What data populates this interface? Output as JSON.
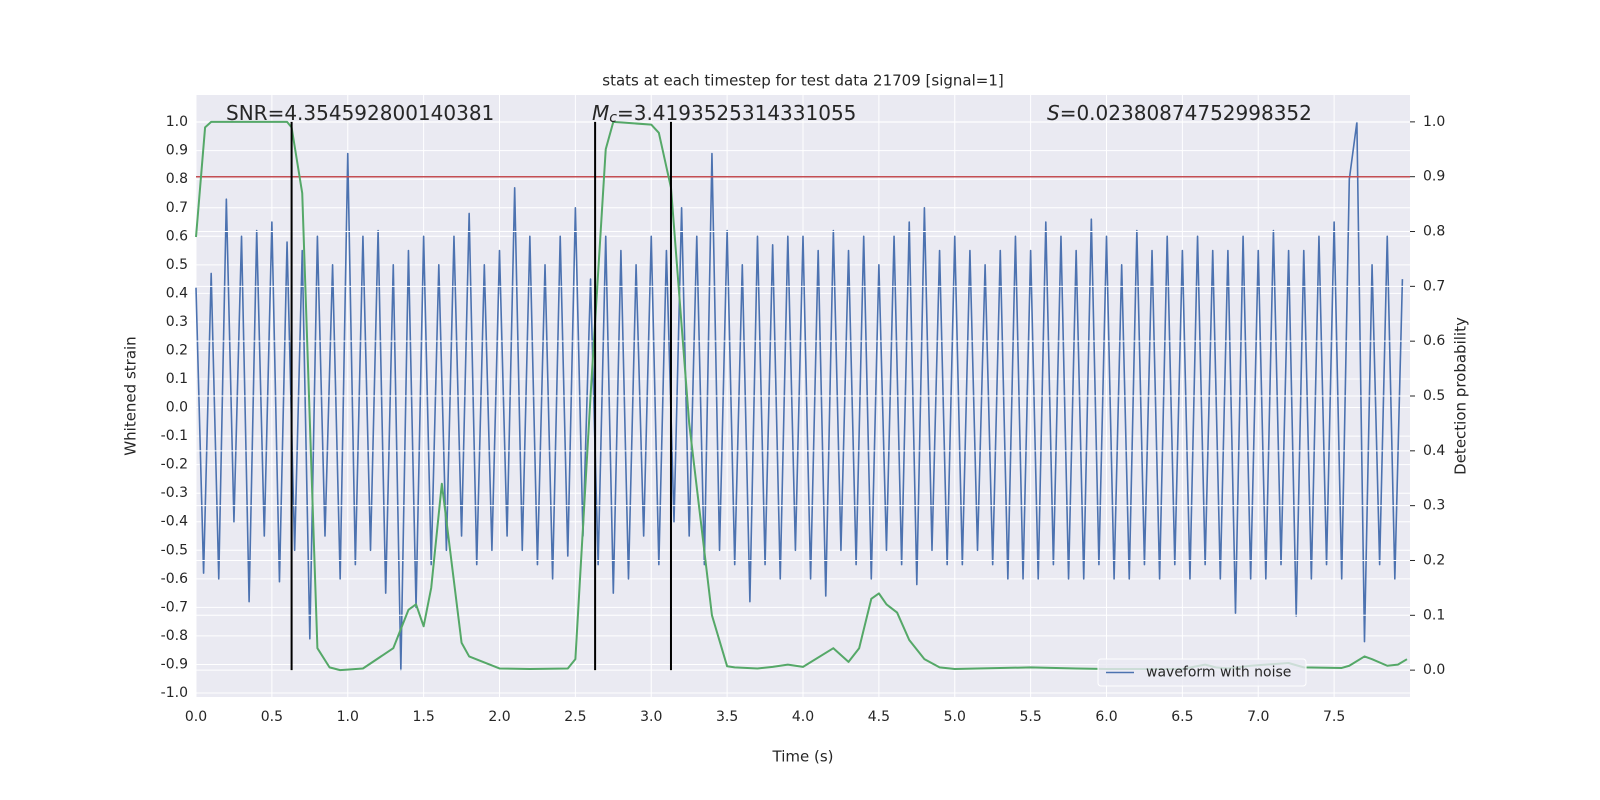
{
  "chart_data": {
    "type": "line",
    "title": "stats at each timestep for test data 21709 [signal=1]",
    "xlabel": "Time (s)",
    "ylabel": "Whitened strain",
    "y2label": "Detection probability",
    "xlim": [
      0,
      8.0
    ],
    "ylim": [
      -1.014,
      1.095
    ],
    "y2lim": [
      -0.049,
      1.049
    ],
    "xticks": [
      {
        "value": 0,
        "label": "0.0"
      },
      0.5,
      {
        "value": 1,
        "label": "1.0"
      },
      1.5,
      {
        "value": 2,
        "label": "2.0"
      },
      2.5,
      {
        "value": 3,
        "label": "3.0"
      },
      3.5,
      {
        "value": 4,
        "label": "4.0"
      },
      4.5,
      {
        "value": 5,
        "label": "5.0"
      },
      5.5,
      {
        "value": 6,
        "label": "6.0"
      },
      6.5,
      {
        "value": 7,
        "label": "7.0"
      },
      7.5
    ],
    "yticks": [
      {
        "value": -1,
        "label": "-1.0"
      },
      -0.9,
      -0.8,
      -0.7,
      -0.6,
      -0.5,
      -0.4,
      -0.3,
      -0.2,
      -0.1,
      {
        "value": 0,
        "label": "0.0"
      },
      0.1,
      0.2,
      0.3,
      0.4,
      0.5,
      0.6,
      0.7,
      0.8,
      0.9,
      {
        "value": 1,
        "label": "1.0"
      }
    ],
    "y2ticks": [
      {
        "value": 0,
        "label": "0.0"
      },
      0.1,
      0.2,
      0.3,
      0.4,
      0.5,
      0.6,
      0.7,
      0.8,
      0.9,
      {
        "value": 1,
        "label": "1.0"
      }
    ],
    "grid": true,
    "y2grid": true,
    "legend": "lower right",
    "series": [
      {
        "name": "waveform with noise",
        "color": "#4c72b0",
        "x": [
          0,
          0.05,
          0.1,
          0.15,
          0.2,
          0.25,
          0.3,
          0.35,
          0.4,
          0.45,
          0.5,
          0.55,
          0.6,
          0.65,
          0.7,
          0.75,
          0.8,
          0.85,
          0.9,
          0.95,
          1.0,
          1.05,
          1.1,
          1.15,
          1.2,
          1.25,
          1.3,
          1.35,
          1.4,
          1.45,
          1.5,
          1.55,
          1.6,
          1.65,
          1.7,
          1.75,
          1.8,
          1.85,
          1.9,
          1.95,
          2.0,
          2.05,
          2.1,
          2.15,
          2.2,
          2.25,
          2.3,
          2.35,
          2.4,
          2.45,
          2.5,
          2.55,
          2.6,
          2.65,
          2.7,
          2.75,
          2.8,
          2.85,
          2.9,
          2.95,
          3.0,
          3.05,
          3.1,
          3.15,
          3.2,
          3.25,
          3.3,
          3.35,
          3.4,
          3.45,
          3.5,
          3.55,
          3.6,
          3.65,
          3.7,
          3.75,
          3.8,
          3.85,
          3.9,
          3.95,
          4.0,
          4.05,
          4.1,
          4.15,
          4.2,
          4.25,
          4.3,
          4.35,
          4.4,
          4.45,
          4.5,
          4.55,
          4.6,
          4.65,
          4.7,
          4.75,
          4.8,
          4.85,
          4.9,
          4.95,
          5.0,
          5.05,
          5.1,
          5.15,
          5.2,
          5.25,
          5.3,
          5.35,
          5.4,
          5.45,
          5.5,
          5.55,
          5.6,
          5.65,
          5.7,
          5.75,
          5.8,
          5.85,
          5.9,
          5.95,
          6.0,
          6.05,
          6.1,
          6.15,
          6.2,
          6.25,
          6.3,
          6.35,
          6.4,
          6.45,
          6.5,
          6.55,
          6.6,
          6.65,
          6.7,
          6.75,
          6.8,
          6.85,
          6.9,
          6.95,
          7.0,
          7.05,
          7.1,
          7.15,
          7.2,
          7.25,
          7.3,
          7.35,
          7.4,
          7.45,
          7.5,
          7.55,
          7.6,
          7.65,
          7.7,
          7.75,
          7.8,
          7.85,
          7.9,
          7.95
        ],
        "values": [
          0.42,
          -0.58,
          0.47,
          -0.6,
          0.73,
          -0.4,
          0.6,
          -0.68,
          0.62,
          -0.45,
          0.65,
          -0.61,
          0.58,
          -0.5,
          0.55,
          -0.81,
          0.6,
          -0.45,
          0.5,
          -0.6,
          0.89,
          -0.55,
          0.6,
          -0.5,
          0.62,
          -0.65,
          0.5,
          -0.92,
          0.55,
          -0.7,
          0.6,
          -0.55,
          0.5,
          -0.5,
          0.6,
          -0.45,
          0.68,
          -0.55,
          0.5,
          -0.5,
          0.55,
          -0.45,
          0.77,
          -0.5,
          0.6,
          -0.55,
          0.5,
          -0.6,
          0.6,
          -0.52,
          0.7,
          -0.45,
          0.45,
          -0.55,
          0.6,
          -0.65,
          0.55,
          -0.6,
          0.5,
          -0.45,
          0.6,
          -0.55,
          0.55,
          -0.4,
          0.7,
          -0.45,
          0.6,
          -0.55,
          0.89,
          -0.5,
          0.62,
          -0.55,
          0.5,
          -0.68,
          0.6,
          -0.55,
          0.57,
          -0.6,
          0.6,
          -0.5,
          0.6,
          -0.6,
          0.55,
          -0.66,
          0.62,
          -0.5,
          0.55,
          -0.55,
          0.6,
          -0.6,
          0.5,
          -0.5,
          0.6,
          -0.55,
          0.65,
          -0.62,
          0.7,
          -0.5,
          0.55,
          -0.55,
          0.6,
          -0.55,
          0.55,
          -0.5,
          0.5,
          -0.55,
          0.55,
          -0.6,
          0.6,
          -0.6,
          0.55,
          -0.6,
          0.65,
          -0.55,
          0.6,
          -0.6,
          0.55,
          -0.6,
          0.66,
          -0.55,
          0.6,
          -0.6,
          0.5,
          -0.6,
          0.62,
          -0.55,
          0.55,
          -0.6,
          0.6,
          -0.55,
          0.55,
          -0.6,
          0.6,
          -0.55,
          0.55,
          -0.6,
          0.55,
          -0.72,
          0.6,
          -0.6,
          0.55,
          -0.6,
          0.62,
          -0.55,
          0.55,
          -0.73,
          0.55,
          -0.6,
          0.6,
          -0.55,
          0.65,
          -0.6,
          0.8,
          1.0,
          -0.82,
          0.5,
          -0.55,
          0.6,
          -0.6,
          0.45
        ]
      },
      {
        "axis": "y2",
        "color": "#55a868",
        "x": [
          0,
          0.06,
          0.1,
          0.2,
          0.4,
          0.6,
          0.63,
          0.7,
          0.8,
          0.88,
          0.95,
          1.1,
          1.3,
          1.4,
          1.45,
          1.5,
          1.55,
          1.62,
          1.75,
          1.8,
          2.0,
          2.2,
          2.45,
          2.5,
          2.6,
          2.7,
          2.75,
          3.0,
          3.05,
          3.13,
          3.25,
          3.4,
          3.5,
          3.55,
          3.7,
          3.8,
          3.9,
          4.0,
          4.2,
          4.3,
          4.37,
          4.45,
          4.5,
          4.55,
          4.62,
          4.7,
          4.8,
          4.9,
          5.0,
          5.5,
          5.8,
          6.0,
          6.5,
          6.65,
          6.72,
          6.8,
          6.95,
          7.2,
          7.3,
          7.55,
          7.6,
          7.7,
          7.75,
          7.85,
          7.92,
          7.98
        ],
        "values": [
          0.79,
          0.99,
          1.0,
          1.0,
          1.0,
          1.0,
          0.99,
          0.87,
          0.04,
          0.005,
          0.0,
          0.003,
          0.04,
          0.11,
          0.12,
          0.08,
          0.15,
          0.34,
          0.05,
          0.025,
          0.003,
          0.002,
          0.003,
          0.02,
          0.5,
          0.95,
          1.0,
          0.995,
          0.98,
          0.88,
          0.45,
          0.1,
          0.007,
          0.005,
          0.003,
          0.006,
          0.01,
          0.006,
          0.04,
          0.015,
          0.04,
          0.13,
          0.14,
          0.12,
          0.105,
          0.055,
          0.02,
          0.005,
          0.002,
          0.005,
          0.003,
          0.002,
          0.002,
          0.01,
          0.005,
          0.003,
          0.008,
          0.013,
          0.005,
          0.004,
          0.008,
          0.025,
          0.02,
          0.008,
          0.01,
          0.02
        ]
      }
    ],
    "hlines": [
      {
        "value": 0.9,
        "axis": "y2",
        "color": "#c44e52"
      }
    ],
    "vlines": {
      "x": [
        0.63,
        2.63,
        3.13
      ],
      "ymin": 0,
      "ymax": 1,
      "axis": "y2",
      "color": "#000000"
    },
    "annotations": [
      {
        "symbol": "SNR",
        "italic": false,
        "text": "=4.354592800140381"
      },
      {
        "symbol": "M",
        "sub": "c",
        "italic": true,
        "text": "=3.4193525314331055"
      },
      {
        "symbol": "S",
        "italic": true,
        "text": "=0.02380874752998352"
      }
    ]
  }
}
